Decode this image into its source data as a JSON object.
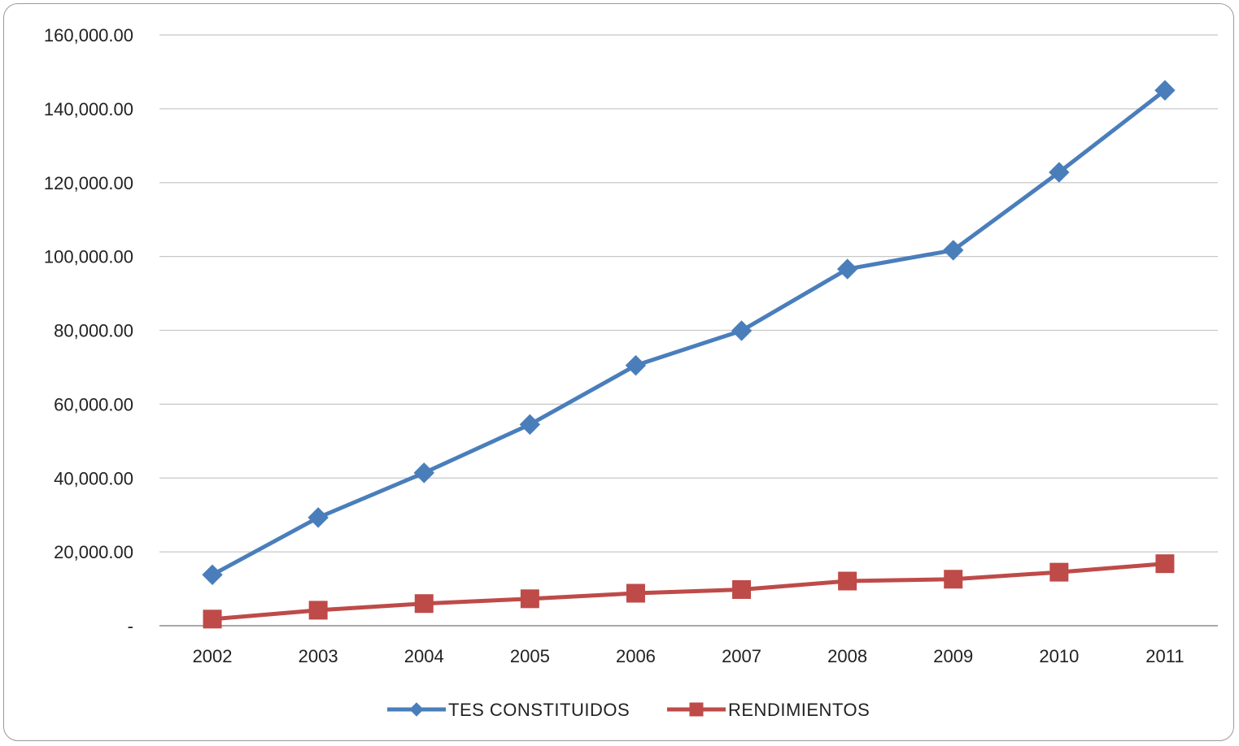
{
  "chart_data": {
    "type": "line",
    "categories": [
      "2002",
      "2003",
      "2004",
      "2005",
      "2006",
      "2007",
      "2008",
      "2009",
      "2010",
      "2011"
    ],
    "ylim": [
      0,
      160000
    ],
    "y_ticks": [
      {
        "value": 0,
        "label": "-"
      },
      {
        "value": 20000,
        "label": "20,000.00"
      },
      {
        "value": 40000,
        "label": "40,000.00"
      },
      {
        "value": 60000,
        "label": "60,000.00"
      },
      {
        "value": 80000,
        "label": "80,000.00"
      },
      {
        "value": 100000,
        "label": "100,000.00"
      },
      {
        "value": 120000,
        "label": "120,000.00"
      },
      {
        "value": 140000,
        "label": "140,000.00"
      },
      {
        "value": 160000,
        "label": "160,000.00"
      }
    ],
    "grid": true,
    "legend_position": "bottom",
    "series": [
      {
        "name": "TES CONSTITUIDOS",
        "color": "#4a7ebb",
        "marker": "diamond",
        "values": [
          13800,
          29300,
          41400,
          54500,
          70500,
          79900,
          96600,
          101700,
          122800,
          145000
        ]
      },
      {
        "name": "RENDIMIENTOS",
        "color": "#be4b48",
        "marker": "square",
        "values": [
          1800,
          4200,
          6000,
          7300,
          8800,
          9800,
          12100,
          12600,
          14500,
          16800
        ]
      }
    ]
  }
}
